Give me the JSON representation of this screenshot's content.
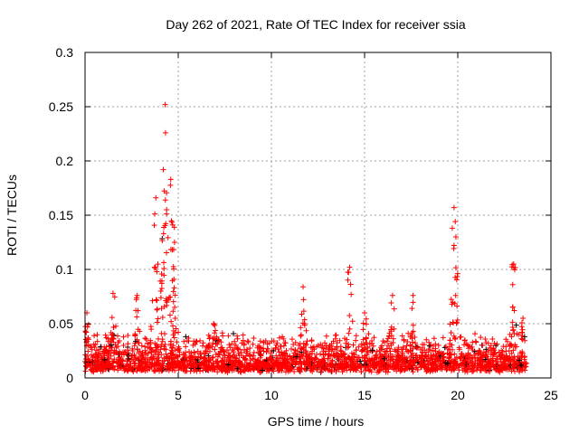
{
  "chart_data": {
    "type": "scatter",
    "title": "Day 262 of 2021, Rate Of TEC Index for receiver ssia",
    "xlabel": "GPS time / hours",
    "ylabel": "ROTI / TECUs",
    "xlim": [
      0,
      25
    ],
    "ylim": [
      0,
      0.3
    ],
    "xticks": [
      "0",
      "5",
      "10",
      "15",
      "20",
      "25"
    ],
    "yticks": [
      "0",
      "0.05",
      "0.1",
      "0.15",
      "0.2",
      "0.25",
      "0.3"
    ],
    "grid": true,
    "marker": "+",
    "colors": {
      "primary": "#ff0000",
      "secondary": "#000000",
      "grid": "#a0a0a0"
    },
    "data_range_hours": [
      0,
      23.7
    ],
    "baseline_roti_range": [
      0.005,
      0.035
    ],
    "peaks": [
      {
        "x": 0.1,
        "y": 0.06
      },
      {
        "x": 1.5,
        "y": 0.078
      },
      {
        "x": 2.8,
        "y": 0.076
      },
      {
        "x": 3.8,
        "y": 0.166
      },
      {
        "x": 4.2,
        "y": 0.192
      },
      {
        "x": 4.3,
        "y": 0.252
      },
      {
        "x": 4.6,
        "y": 0.183
      },
      {
        "x": 4.7,
        "y": 0.141
      },
      {
        "x": 4.8,
        "y": 0.125
      },
      {
        "x": 6.9,
        "y": 0.05
      },
      {
        "x": 11.7,
        "y": 0.084
      },
      {
        "x": 14.2,
        "y": 0.102
      },
      {
        "x": 15.0,
        "y": 0.06
      },
      {
        "x": 16.5,
        "y": 0.076
      },
      {
        "x": 17.6,
        "y": 0.076
      },
      {
        "x": 19.8,
        "y": 0.157
      },
      {
        "x": 19.9,
        "y": 0.13
      },
      {
        "x": 23.0,
        "y": 0.105
      },
      {
        "x": 23.5,
        "y": 0.055
      }
    ]
  }
}
